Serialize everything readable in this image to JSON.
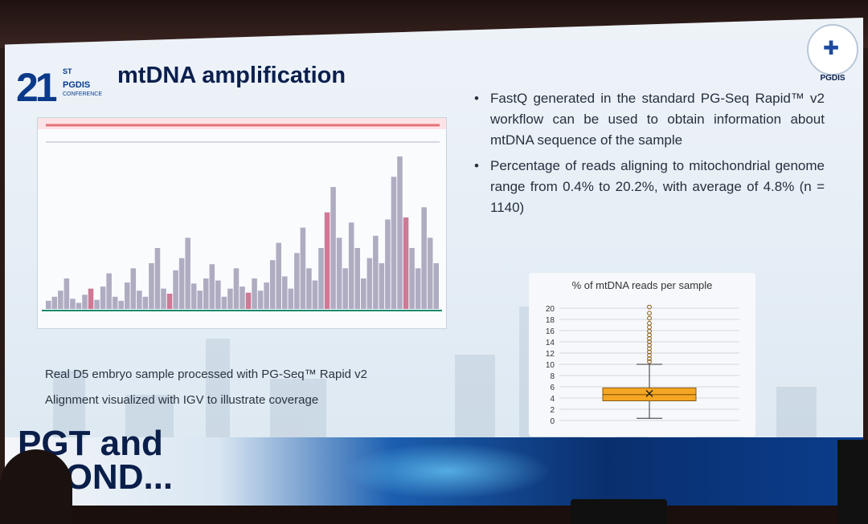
{
  "slide": {
    "title": "mtDNA amplification",
    "logo": {
      "number": "21",
      "ordinal": "ST",
      "org": "PGDIS",
      "sub": "CONFERENCE"
    },
    "corner_logo_label": "PGDIS",
    "banner_text_line1": "PGT and",
    "banner_text_line2": "EYOND...",
    "captions": [
      "Real D5 embryo sample processed with PG-Seq™ Rapid v2",
      "Alignment visualized with IGV  to illustrate coverage"
    ],
    "bullets": [
      "FastQ generated in the standard PG-Seq Rapid™ v2 workflow can be used to obtain information about mtDNA sequence of the sample",
      "Percentage of reads aligning to mitochondrial genome range from 0.4% to 20.2%, with average of 4.8% (n = 1140)"
    ],
    "bullet_char": "•"
  },
  "colors": {
    "title": "#0b1f4e",
    "box_fill": "#f5a623",
    "whisker": "#333333"
  },
  "chart_data": {
    "type": "box",
    "title": "% of mtDNA reads per sample",
    "ylim": [
      0,
      20
    ],
    "yticks": [
      0,
      2,
      4,
      6,
      8,
      10,
      12,
      14,
      16,
      18,
      20
    ],
    "series": [
      {
        "min": 0.4,
        "q1": 3.5,
        "median": 4.6,
        "q3": 5.8,
        "whisker_high": 10,
        "mean": 4.8,
        "outliers": [
          10.5,
          11.0,
          11.6,
          12.2,
          12.8,
          13.4,
          14.0,
          14.6,
          15.2,
          15.9,
          16.6,
          17.3,
          18.2,
          19.1,
          20.2
        ]
      }
    ],
    "grid": true
  },
  "igv_coverage": [
    8,
    12,
    18,
    30,
    10,
    6,
    14,
    20,
    9,
    22,
    35,
    12,
    8,
    26,
    40,
    18,
    12,
    45,
    60,
    20,
    15,
    38,
    50,
    70,
    25,
    18,
    30,
    44,
    28,
    12,
    20,
    40,
    22,
    16,
    30,
    18,
    26,
    48,
    65,
    32,
    20,
    55,
    80,
    40,
    28,
    60,
    95,
    120,
    70,
    40,
    85,
    60,
    30,
    50,
    72,
    45,
    88,
    130,
    150,
    90,
    60,
    40,
    100,
    70,
    45
  ]
}
